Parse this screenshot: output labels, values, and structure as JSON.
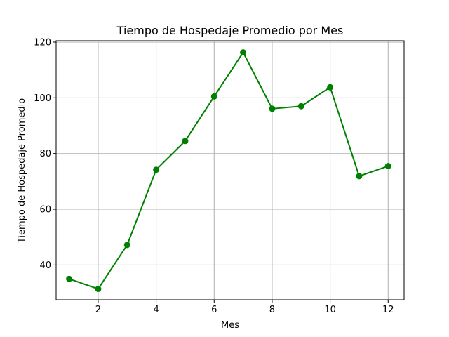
{
  "chart_data": {
    "type": "line",
    "title": "Tiempo de Hospedaje Promedio por Mes",
    "xlabel": "Mes",
    "ylabel": "Tiempo de Hospedaje Promedio",
    "x": [
      1,
      2,
      3,
      4,
      5,
      6,
      7,
      8,
      9,
      10,
      11,
      12
    ],
    "series": [
      {
        "values": [
          35.0,
          31.4,
          47.2,
          74.2,
          84.5,
          100.5,
          116.3,
          96.1,
          97.0,
          103.8,
          71.9,
          75.5
        ],
        "color": "#008000",
        "marker": "circle"
      }
    ],
    "xlim": [
      0.55,
      12.55
    ],
    "ylim": [
      27.5,
      120.5
    ],
    "xticks": [
      2,
      4,
      6,
      8,
      10,
      12
    ],
    "yticks": [
      40,
      60,
      80,
      100,
      120
    ],
    "grid": true,
    "grid_color": "#b0b0b0"
  }
}
